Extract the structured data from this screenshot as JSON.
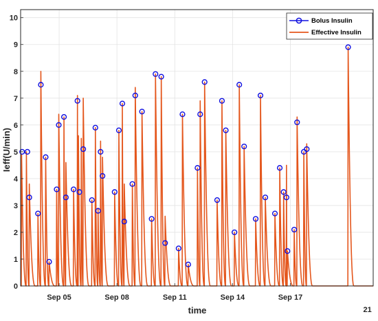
{
  "chart_data": {
    "type": "line",
    "title": "",
    "xlabel": "time",
    "ylabel": "Ieff(U/min)",
    "x_unit": "days",
    "xlim": [
      3.0,
      21.3
    ],
    "ylim": [
      0,
      10.3
    ],
    "yticks": [
      0,
      1,
      2,
      3,
      4,
      5,
      6,
      7,
      8,
      9,
      10
    ],
    "xticks": [
      {
        "value": 5.0,
        "label": "Sep 05"
      },
      {
        "value": 8.0,
        "label": "Sep 08"
      },
      {
        "value": 11.0,
        "label": "Sep 11"
      },
      {
        "value": 14.0,
        "label": "Sep 14"
      },
      {
        "value": 17.0,
        "label": "Sep 17"
      }
    ],
    "corner_label": {
      "value": 21.0,
      "label": "21"
    },
    "grid": true,
    "legend": {
      "position": "top-right"
    },
    "series": [
      {
        "name": "Bolus Insulin",
        "style": "markers",
        "color": "#1010e0",
        "points": [
          [
            3.08,
            5.0
          ],
          [
            3.35,
            5.0
          ],
          [
            3.45,
            3.3
          ],
          [
            3.9,
            2.7
          ],
          [
            4.05,
            7.5
          ],
          [
            4.3,
            4.8
          ],
          [
            4.48,
            0.9
          ],
          [
            4.87,
            3.6
          ],
          [
            4.98,
            6.0
          ],
          [
            5.25,
            6.3
          ],
          [
            5.35,
            3.3
          ],
          [
            5.75,
            3.6
          ],
          [
            5.95,
            6.9
          ],
          [
            6.05,
            3.5
          ],
          [
            6.25,
            5.1
          ],
          [
            6.7,
            3.2
          ],
          [
            6.88,
            5.9
          ],
          [
            7.02,
            2.8
          ],
          [
            7.15,
            5.0
          ],
          [
            7.25,
            4.1
          ],
          [
            7.88,
            3.5
          ],
          [
            8.1,
            5.8
          ],
          [
            8.28,
            6.8
          ],
          [
            8.38,
            2.4
          ],
          [
            8.8,
            3.8
          ],
          [
            8.95,
            7.1
          ],
          [
            9.3,
            6.5
          ],
          [
            9.8,
            2.5
          ],
          [
            10.0,
            7.9
          ],
          [
            10.3,
            7.8
          ],
          [
            10.5,
            1.6
          ],
          [
            11.2,
            1.4
          ],
          [
            11.4,
            6.4
          ],
          [
            11.7,
            0.8
          ],
          [
            12.18,
            4.4
          ],
          [
            12.32,
            6.4
          ],
          [
            12.55,
            7.6
          ],
          [
            13.2,
            3.2
          ],
          [
            13.45,
            6.9
          ],
          [
            13.65,
            5.8
          ],
          [
            14.1,
            2.0
          ],
          [
            14.35,
            7.5
          ],
          [
            14.6,
            5.2
          ],
          [
            15.2,
            2.5
          ],
          [
            15.45,
            7.1
          ],
          [
            15.7,
            3.3
          ],
          [
            16.2,
            2.7
          ],
          [
            16.45,
            4.4
          ],
          [
            16.65,
            3.5
          ],
          [
            16.8,
            3.3
          ],
          [
            16.85,
            1.3
          ],
          [
            17.2,
            2.1
          ],
          [
            17.35,
            6.1
          ],
          [
            17.7,
            5.0
          ],
          [
            17.85,
            5.1
          ],
          [
            20.0,
            8.9
          ]
        ]
      },
      {
        "name": "Effective Insulin",
        "style": "line",
        "color": "#e4561c",
        "peaks": [
          [
            3.05,
            4.9
          ],
          [
            3.3,
            5.0
          ],
          [
            3.45,
            3.8
          ],
          [
            3.9,
            2.7
          ],
          [
            4.05,
            8.0
          ],
          [
            4.3,
            4.8
          ],
          [
            4.48,
            0.9
          ],
          [
            4.87,
            3.6
          ],
          [
            4.98,
            6.4
          ],
          [
            5.25,
            6.3
          ],
          [
            5.35,
            4.6
          ],
          [
            5.75,
            3.6
          ],
          [
            5.95,
            7.1
          ],
          [
            6.0,
            5.6
          ],
          [
            6.15,
            5.5
          ],
          [
            6.25,
            7.0
          ],
          [
            6.7,
            3.2
          ],
          [
            6.88,
            5.9
          ],
          [
            7.02,
            2.9
          ],
          [
            7.15,
            5.4
          ],
          [
            7.25,
            4.8
          ],
          [
            7.88,
            3.5
          ],
          [
            8.1,
            5.8
          ],
          [
            8.28,
            6.8
          ],
          [
            8.38,
            3.8
          ],
          [
            8.8,
            3.8
          ],
          [
            8.95,
            7.4
          ],
          [
            9.3,
            6.5
          ],
          [
            9.8,
            2.5
          ],
          [
            10.0,
            7.9
          ],
          [
            10.3,
            7.8
          ],
          [
            10.5,
            2.6
          ],
          [
            11.2,
            1.4
          ],
          [
            11.4,
            6.4
          ],
          [
            11.7,
            0.8
          ],
          [
            12.18,
            4.4
          ],
          [
            12.32,
            6.9
          ],
          [
            12.55,
            7.6
          ],
          [
            13.2,
            3.2
          ],
          [
            13.45,
            6.9
          ],
          [
            13.65,
            5.8
          ],
          [
            14.1,
            2.0
          ],
          [
            14.35,
            7.5
          ],
          [
            14.6,
            5.2
          ],
          [
            15.2,
            2.5
          ],
          [
            15.45,
            7.1
          ],
          [
            15.7,
            3.3
          ],
          [
            16.2,
            2.7
          ],
          [
            16.45,
            4.4
          ],
          [
            16.65,
            3.5
          ],
          [
            16.8,
            4.5
          ],
          [
            16.85,
            1.3
          ],
          [
            17.2,
            2.1
          ],
          [
            17.35,
            6.3
          ],
          [
            17.7,
            5.0
          ],
          [
            17.85,
            5.3
          ],
          [
            20.0,
            8.9
          ]
        ]
      }
    ]
  }
}
